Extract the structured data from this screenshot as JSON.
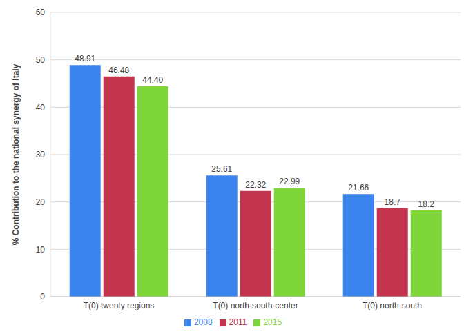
{
  "chart_data": {
    "type": "bar",
    "y_label": "% Contribution to the national synergy of Italy",
    "categories": [
      "T(0) twenty regions",
      "T(0) north-south-center",
      "T(0) north-south"
    ],
    "series": [
      {
        "name": "2008",
        "color": "#3d85ee",
        "values": [
          48.91,
          25.61,
          21.66
        ],
        "value_labels": [
          "48.91",
          "25.61",
          "21.66"
        ]
      },
      {
        "name": "2011",
        "color": "#c3354e",
        "values": [
          46.48,
          22.32,
          18.7
        ],
        "value_labels": [
          "46.48",
          "22.32",
          "18.7"
        ]
      },
      {
        "name": "2015",
        "color": "#7fd63a",
        "values": [
          44.4,
          22.99,
          18.2
        ],
        "value_labels": [
          "44.40",
          "22.99",
          "18.2"
        ]
      }
    ],
    "ylim": [
      0,
      60
    ],
    "yticks": [
      0,
      10,
      20,
      30,
      40,
      50,
      60
    ],
    "grid": true,
    "legend": "bottom",
    "data_labels": true
  }
}
